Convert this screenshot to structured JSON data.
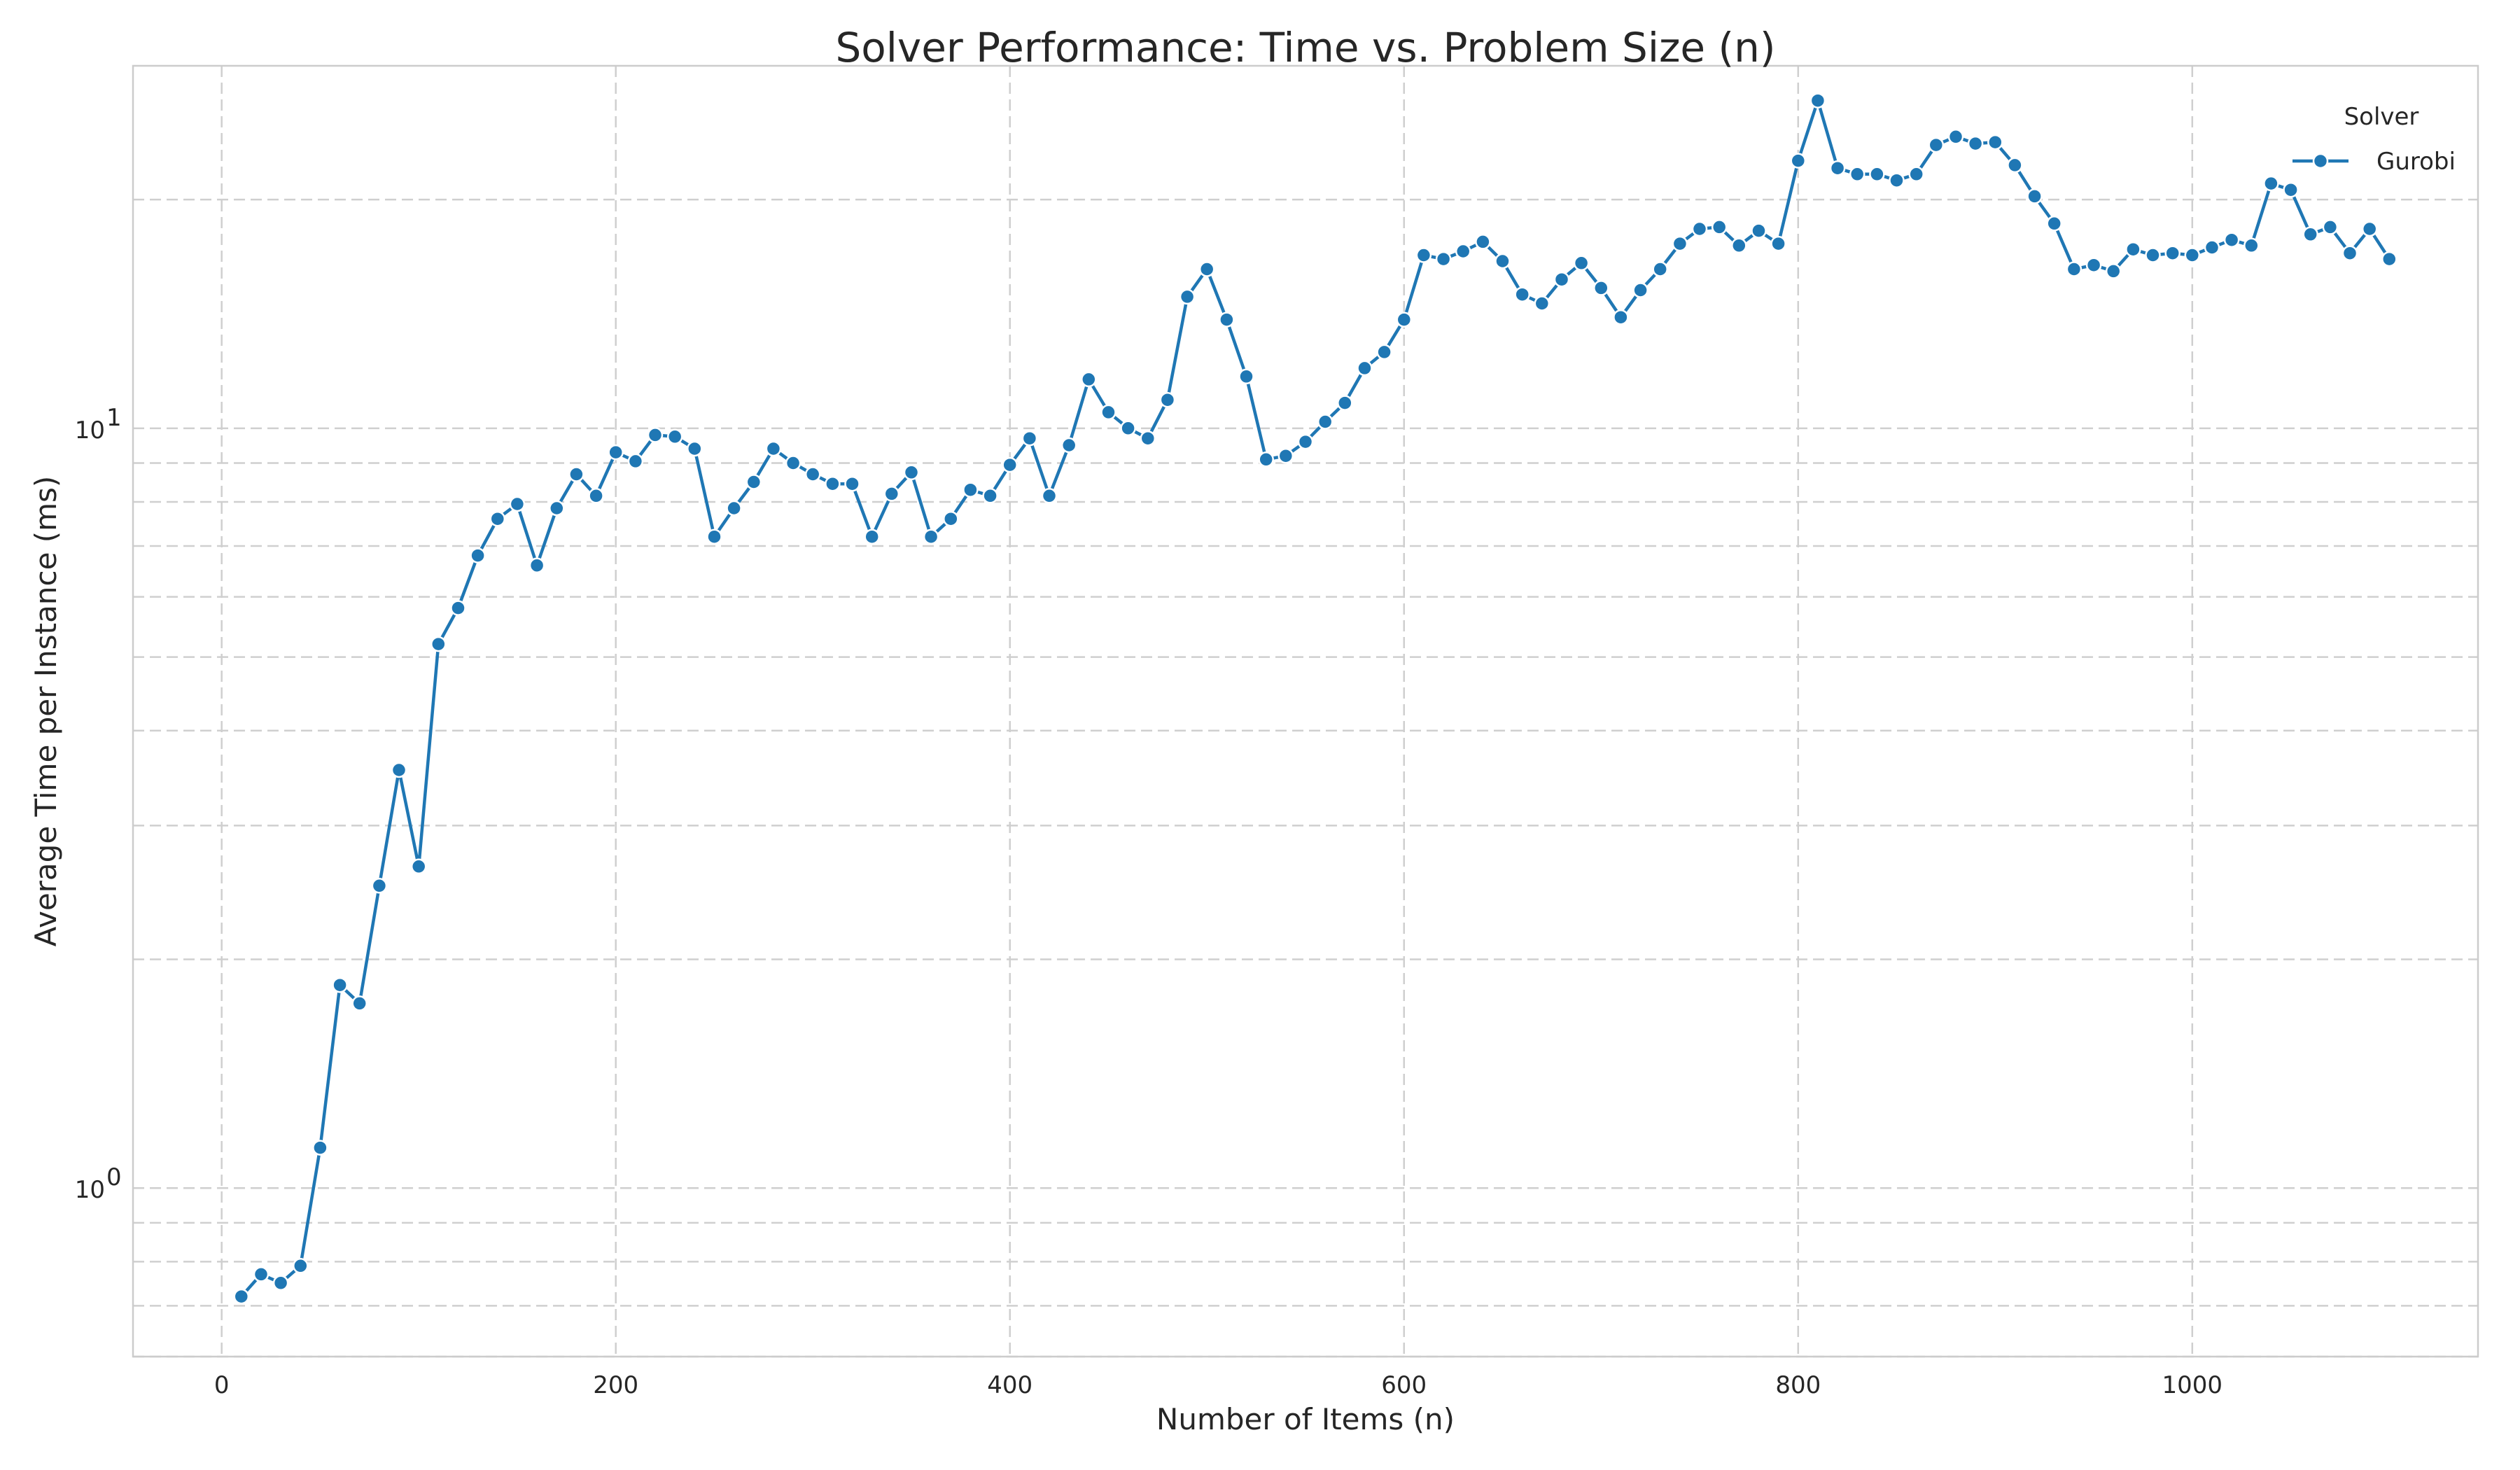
{
  "chart_data": {
    "type": "line",
    "title": "Solver Performance: Time vs. Problem Size (n)",
    "xlabel": "Number of Items (n)",
    "ylabel": "Average Time per Instance (ms)",
    "xlim": [
      -45,
      1145
    ],
    "ylim": [
      0.6,
      30
    ],
    "yscale": "log",
    "grid": true,
    "x_ticks": [
      0,
      200,
      400,
      600,
      800,
      1000
    ],
    "x_tick_labels": [
      "0",
      "200",
      "400",
      "600",
      "800",
      "1000"
    ],
    "y_major_ticks": [
      1,
      10
    ],
    "y_major_tick_labels": [
      "10",
      "10"
    ],
    "y_major_tick_exponents": [
      "0",
      "1"
    ],
    "y_minor_ticks": [
      0.6,
      0.7,
      0.8,
      0.9,
      2,
      3,
      4,
      5,
      6,
      7,
      8,
      9,
      20
    ],
    "legend": {
      "title": "Solver",
      "placement": "top-right"
    },
    "series": [
      {
        "name": "Gurobi",
        "color": "#1f77b4",
        "marker": "circle",
        "x": [
          10,
          20,
          30,
          40,
          50,
          60,
          70,
          80,
          90,
          100,
          110,
          120,
          130,
          140,
          150,
          160,
          170,
          180,
          190,
          200,
          210,
          220,
          230,
          240,
          250,
          260,
          270,
          280,
          290,
          300,
          310,
          320,
          330,
          340,
          350,
          360,
          370,
          380,
          390,
          400,
          410,
          420,
          430,
          440,
          450,
          460,
          470,
          480,
          490,
          500,
          510,
          520,
          530,
          540,
          550,
          560,
          570,
          580,
          590,
          600,
          610,
          620,
          630,
          640,
          650,
          660,
          670,
          680,
          690,
          700,
          710,
          720,
          730,
          740,
          750,
          760,
          770,
          780,
          790,
          800,
          810,
          820,
          830,
          840,
          850,
          860,
          870,
          880,
          890,
          900,
          910,
          920,
          930,
          940,
          950,
          960,
          970,
          980,
          990,
          1000,
          1010,
          1020,
          1030,
          1040,
          1050,
          1060,
          1070,
          1080,
          1090,
          1100
        ],
        "y": [
          0.72,
          0.77,
          0.75,
          0.79,
          1.13,
          1.85,
          1.75,
          2.5,
          3.55,
          2.65,
          5.2,
          5.8,
          6.8,
          7.6,
          7.95,
          6.6,
          7.85,
          8.7,
          8.15,
          9.3,
          9.05,
          9.8,
          9.75,
          9.4,
          7.2,
          7.85,
          8.5,
          9.4,
          9.0,
          8.7,
          8.45,
          8.45,
          7.2,
          8.2,
          8.75,
          7.2,
          7.6,
          8.3,
          8.15,
          8.95,
          9.7,
          8.15,
          9.5,
          11.6,
          10.5,
          10.0,
          9.7,
          10.9,
          14.9,
          16.2,
          13.9,
          11.7,
          9.1,
          9.2,
          9.6,
          10.2,
          10.8,
          12.0,
          12.6,
          13.9,
          16.9,
          16.7,
          17.1,
          17.6,
          16.6,
          15.0,
          14.6,
          15.7,
          16.5,
          15.3,
          14.0,
          15.2,
          16.2,
          17.5,
          18.3,
          18.4,
          17.4,
          18.2,
          17.5,
          22.5,
          27.0,
          22.0,
          21.6,
          21.6,
          21.2,
          21.6,
          23.6,
          24.2,
          23.7,
          23.8,
          22.2,
          20.2,
          18.6,
          16.2,
          16.4,
          16.1,
          17.2,
          16.9,
          17.0,
          16.9,
          17.3,
          17.7,
          17.4,
          21.0,
          20.6,
          18.0,
          18.4,
          17.0,
          18.3,
          16.7
        ]
      }
    ]
  }
}
